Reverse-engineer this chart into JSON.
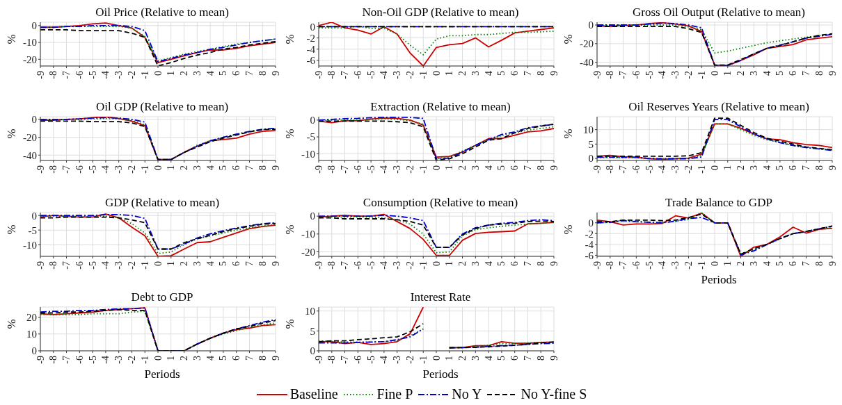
{
  "chart_data": [
    {
      "type": "line",
      "title": "Oil Price (Relative to mean)",
      "ylabel": "%",
      "x": [
        -9,
        -8,
        -7,
        -6,
        -5,
        -4,
        -3,
        -2,
        -1,
        0,
        1,
        2,
        3,
        4,
        5,
        6,
        7,
        8,
        9
      ],
      "xlim": [
        -9,
        9
      ],
      "xticks": [
        -9,
        -8,
        -7,
        -6,
        -5,
        -4,
        -3,
        -2,
        -1,
        0,
        1,
        2,
        3,
        4,
        5,
        6,
        7,
        8,
        9
      ],
      "ylim": [
        -24,
        2
      ],
      "yticks": [
        -20,
        -10,
        0
      ],
      "grid": true,
      "series": [
        {
          "color": "#cc0000",
          "line_style": "solid",
          "values": [
            -1,
            -1,
            -0.5,
            0,
            1,
            1.5,
            0,
            -1.5,
            -7,
            -22,
            -20,
            -18,
            -16,
            -14.5,
            -14.5,
            -13.5,
            -12,
            -11,
            -10
          ]
        },
        {
          "color": "#008000",
          "line_style": "dotted",
          "values": [
            -1,
            -1,
            -0.5,
            -0.5,
            -0.5,
            -0.5,
            -0.5,
            -1.5,
            -6.5,
            -21,
            -19,
            -17,
            -15.5,
            -14,
            -12.5,
            -11,
            -10,
            -9,
            -8
          ]
        },
        {
          "color": "#0000cc",
          "line_style": "dashdot",
          "values": [
            -1,
            -1,
            -0.5,
            -0.5,
            0,
            0,
            0,
            -0.5,
            -3,
            -21.5,
            -19.5,
            -17.5,
            -16,
            -14,
            -13,
            -11.5,
            -10,
            -9,
            -8
          ]
        },
        {
          "color": "#000000",
          "line_style": "dashed",
          "values": [
            -2.5,
            -2.5,
            -2.5,
            -3,
            -3,
            -3,
            -3,
            -4.5,
            -7,
            -24,
            -22,
            -19.5,
            -17.5,
            -16,
            -14,
            -13,
            -11.5,
            -10.5,
            -9.5
          ]
        }
      ]
    },
    {
      "type": "line",
      "title": "Non-Oil GDP (Relative to mean)",
      "ylabel": "%",
      "x": [
        -9,
        -8,
        -7,
        -6,
        -5,
        -4,
        -3,
        -2,
        -1,
        0,
        1,
        2,
        3,
        4,
        5,
        6,
        7,
        8,
        9
      ],
      "xlim": [
        -9,
        9
      ],
      "xticks": [
        -9,
        -8,
        -7,
        -6,
        -5,
        -4,
        -3,
        -2,
        -1,
        0,
        1,
        2,
        3,
        4,
        5,
        6,
        7,
        8,
        9
      ],
      "ylim": [
        -7,
        0.8
      ],
      "yticks": [
        -6,
        -4,
        -2,
        0
      ],
      "grid": true,
      "series": [
        {
          "color": "#cc0000",
          "line_style": "solid",
          "values": [
            0.2,
            0.8,
            -0.2,
            -0.6,
            -1.3,
            0,
            -1.3,
            -4.7,
            -7,
            -3.7,
            -3.2,
            -3,
            -2,
            -3.6,
            -2.4,
            -1.1,
            -0.8,
            -0.5,
            -0.2
          ]
        },
        {
          "color": "#008000",
          "line_style": "dotted",
          "values": [
            -0.2,
            -0.2,
            -0.2,
            0.1,
            -0.3,
            -0.3,
            -1.3,
            -3.3,
            -5,
            -2.2,
            -1.6,
            -1.6,
            -1.4,
            -1.4,
            -1.2,
            -1,
            -1,
            -0.9,
            -0.8
          ]
        },
        {
          "color": "#0000cc",
          "line_style": "dashdot",
          "values": [
            0,
            0,
            0,
            0,
            0,
            0,
            0,
            0,
            0,
            0,
            0,
            0,
            0,
            0,
            0,
            0,
            0,
            0,
            0
          ]
        },
        {
          "color": "#000000",
          "line_style": "dashed",
          "values": [
            0,
            0,
            0,
            0,
            0,
            0,
            0,
            0,
            0,
            0,
            0,
            0,
            0,
            0,
            0,
            0,
            0,
            0,
            0
          ]
        }
      ]
    },
    {
      "type": "line",
      "title": "Gross Oil Output (Relative to mean)",
      "ylabel": "%",
      "x": [
        -9,
        -8,
        -7,
        -6,
        -5,
        -4,
        -3,
        -2,
        -1,
        0,
        1,
        2,
        3,
        4,
        5,
        6,
        7,
        8,
        9
      ],
      "xlim": [
        -9,
        9
      ],
      "xticks": [
        -9,
        -8,
        -7,
        -6,
        -5,
        -4,
        -3,
        -2,
        -1,
        0,
        1,
        2,
        3,
        4,
        5,
        6,
        7,
        8,
        9
      ],
      "ylim": [
        -44,
        3
      ],
      "yticks": [
        -40,
        -20,
        0
      ],
      "grid": true,
      "series": [
        {
          "color": "#cc0000",
          "line_style": "solid",
          "values": [
            -1,
            -1.5,
            -0.5,
            0,
            1.5,
            2.5,
            1,
            -1,
            -7,
            -43,
            -43.5,
            -38,
            -32,
            -25,
            -23,
            -21,
            -16,
            -14,
            -12.5
          ]
        },
        {
          "color": "#008000",
          "line_style": "dotted",
          "values": [
            -0.5,
            -0.5,
            0,
            0,
            0,
            0,
            0,
            -2,
            -5,
            -30,
            -28,
            -25,
            -22,
            -19,
            -17,
            -15,
            -13,
            -11.5,
            -10
          ]
        },
        {
          "color": "#0000cc",
          "line_style": "dashdot",
          "values": [
            0,
            0,
            0,
            0,
            1,
            2,
            1.5,
            0,
            -3,
            -43,
            -43.5,
            -38,
            -31,
            -25,
            -21.5,
            -18,
            -14,
            -12,
            -10
          ]
        },
        {
          "color": "#000000",
          "line_style": "dashed",
          "values": [
            -1.5,
            -1.5,
            -1.5,
            -1.5,
            -1.5,
            -1.5,
            -1.5,
            -4,
            -8,
            -43,
            -43,
            -37,
            -31,
            -25,
            -22,
            -18,
            -14,
            -11,
            -9.5
          ]
        }
      ]
    },
    {
      "type": "line",
      "title": "Oil GDP (Relative to mean)",
      "ylabel": "%",
      "x": [
        -9,
        -8,
        -7,
        -6,
        -5,
        -4,
        -3,
        -2,
        -1,
        0,
        1,
        2,
        3,
        4,
        5,
        6,
        7,
        8,
        9
      ],
      "xlim": [
        -9,
        9
      ],
      "xticks": [
        -9,
        -8,
        -7,
        -6,
        -5,
        -4,
        -3,
        -2,
        -1,
        0,
        1,
        2,
        3,
        4,
        5,
        6,
        7,
        8,
        9
      ],
      "ylim": [
        -46,
        3
      ],
      "yticks": [
        -40,
        -20,
        0
      ],
      "grid": true,
      "series": [
        {
          "color": "#cc0000",
          "line_style": "solid",
          "values": [
            -1,
            -1,
            0,
            0.5,
            2,
            3,
            1,
            -2,
            -7,
            -45,
            -45,
            -37,
            -30,
            -24,
            -22.5,
            -21,
            -16.5,
            -13.5,
            -12.5
          ]
        },
        {
          "color": "#008000",
          "line_style": "dotted",
          "values": [
            -0.5,
            -0.5,
            0,
            0,
            0.5,
            1,
            0.5,
            -1,
            -6,
            -45,
            -45,
            -37,
            -29,
            -24,
            -20,
            -17,
            -14,
            -11.5,
            -10.5
          ]
        },
        {
          "color": "#0000cc",
          "line_style": "dashdot",
          "values": [
            0,
            0,
            0,
            0.5,
            1.5,
            2,
            1.5,
            0,
            -3,
            -45,
            -45,
            -37,
            -30,
            -24,
            -20,
            -16.5,
            -13.5,
            -11,
            -10
          ]
        },
        {
          "color": "#000000",
          "line_style": "dashed",
          "values": [
            -2,
            -2,
            -2,
            -2,
            -2.5,
            -2.5,
            -2.5,
            -4,
            -8,
            -45,
            -45,
            -37,
            -31,
            -25,
            -21,
            -17.5,
            -14,
            -11.5,
            -11
          ]
        }
      ]
    },
    {
      "type": "line",
      "title": "Extraction (Relative to mean)",
      "ylabel": "%",
      "x": [
        -9,
        -8,
        -7,
        -6,
        -5,
        -4,
        -3,
        -2,
        -1,
        0,
        1,
        2,
        3,
        4,
        5,
        6,
        7,
        8,
        9
      ],
      "xlim": [
        -9,
        9
      ],
      "xticks": [
        -9,
        -8,
        -7,
        -6,
        -5,
        -4,
        -3,
        -2,
        -1,
        0,
        1,
        2,
        3,
        4,
        5,
        6,
        7,
        8,
        9
      ],
      "ylim": [
        -12,
        1
      ],
      "yticks": [
        -10,
        -5,
        0
      ],
      "grid": true,
      "series": [
        {
          "color": "#cc0000",
          "line_style": "solid",
          "values": [
            -0.3,
            -0.8,
            -0.2,
            -0.2,
            0.3,
            0.6,
            0.5,
            0,
            -1.5,
            -11,
            -10.8,
            -9.5,
            -7.5,
            -5.5,
            -5.5,
            -4.5,
            -3.5,
            -3.2,
            -2.5
          ]
        },
        {
          "color": "#008000",
          "line_style": "dotted",
          "values": [
            0,
            0,
            0,
            0,
            0.2,
            0.4,
            0.2,
            -0.2,
            -1.2,
            -11.5,
            -11,
            -9.2,
            -7.5,
            -5.8,
            -4.6,
            -3.8,
            -3,
            -2.5,
            -2
          ]
        },
        {
          "color": "#0000cc",
          "line_style": "dashdot",
          "values": [
            0,
            0.2,
            0.4,
            0.5,
            0.7,
            0.8,
            0.8,
            0.8,
            0.5,
            -11.5,
            -11.3,
            -9.5,
            -7.5,
            -5.8,
            -4.3,
            -3.5,
            -2.3,
            -1.7,
            -1.3
          ]
        },
        {
          "color": "#000000",
          "line_style": "dashed",
          "values": [
            -0.3,
            -0.3,
            -0.3,
            -0.3,
            -0.3,
            -0.3,
            -0.5,
            -0.8,
            -2,
            -12,
            -11.5,
            -10,
            -8,
            -6,
            -5.5,
            -3.8,
            -2.5,
            -1.8,
            -1.2
          ]
        }
      ]
    },
    {
      "type": "line",
      "title": "Oil Reserves Years (Relative to mean)",
      "ylabel": "%",
      "x": [
        -9,
        -8,
        -7,
        -6,
        -5,
        -4,
        -3,
        -2,
        -1,
        0,
        1,
        2,
        3,
        4,
        5,
        6,
        7,
        8,
        9
      ],
      "xlim": [
        -9,
        9
      ],
      "xticks": [
        -9,
        -8,
        -7,
        -6,
        -5,
        -4,
        -3,
        -2,
        -1,
        0,
        1,
        2,
        3,
        4,
        5,
        6,
        7,
        8,
        9
      ],
      "ylim": [
        -0.7,
        14.5
      ],
      "yticks": [
        0,
        5,
        10
      ],
      "grid": true,
      "series": [
        {
          "color": "#cc0000",
          "line_style": "solid",
          "values": [
            0.8,
            1.1,
            0.6,
            0.4,
            -0.1,
            -0.3,
            -0.1,
            0.1,
            1.5,
            12,
            12,
            10.5,
            8.5,
            6.8,
            6.5,
            5.5,
            4.8,
            4.5,
            3.8
          ]
        },
        {
          "color": "#008000",
          "line_style": "dotted",
          "values": [
            0.3,
            0.3,
            0.3,
            0.3,
            0,
            -0.1,
            0,
            0,
            1,
            12,
            12,
            10,
            8,
            6.5,
            5.5,
            4.5,
            3.8,
            3.3,
            3
          ]
        },
        {
          "color": "#0000cc",
          "line_style": "dashdot",
          "values": [
            0.5,
            0.5,
            0.4,
            0.4,
            0,
            -0.1,
            -0.1,
            -0.1,
            0.5,
            13.5,
            13.5,
            11,
            8.5,
            6.8,
            5.5,
            4.5,
            3.8,
            3.3,
            2.8
          ]
        },
        {
          "color": "#000000",
          "line_style": "dashed",
          "values": [
            0.8,
            0.8,
            0.8,
            0.8,
            0.8,
            0.8,
            0.8,
            0.9,
            2,
            14,
            14,
            11.5,
            9,
            7,
            6,
            5,
            4,
            3.5,
            3
          ]
        }
      ]
    },
    {
      "type": "line",
      "title": "GDP (Relative to mean)",
      "ylabel": "%",
      "x": [
        -9,
        -8,
        -7,
        -6,
        -5,
        -4,
        -3,
        -2,
        -1,
        0,
        1,
        2,
        3,
        4,
        5,
        6,
        7,
        8,
        9
      ],
      "xlim": [
        -9,
        9
      ],
      "xticks": [
        -9,
        -8,
        -7,
        -6,
        -5,
        -4,
        -3,
        -2,
        -1,
        0,
        1,
        2,
        3,
        4,
        5,
        6,
        7,
        8,
        9
      ],
      "ylim": [
        -14,
        1
      ],
      "yticks": [
        -10,
        -5,
        0
      ],
      "grid": true,
      "series": [
        {
          "color": "#cc0000",
          "line_style": "solid",
          "values": [
            -0.5,
            0,
            -0.3,
            -0.5,
            -0.5,
            0.5,
            -0.8,
            -4,
            -7,
            -14,
            -13.8,
            -11.5,
            -9.3,
            -9,
            -7.5,
            -6,
            -4.5,
            -3.8,
            -3.3
          ]
        },
        {
          "color": "#008000",
          "line_style": "dotted",
          "values": [
            -0.3,
            -0.3,
            -0.3,
            -0.3,
            -0.3,
            -0.2,
            -0.8,
            -2.8,
            -6,
            -13,
            -12.5,
            -10,
            -8,
            -7,
            -6,
            -5,
            -4.2,
            -3.6,
            -3
          ]
        },
        {
          "color": "#0000cc",
          "line_style": "dashdot",
          "values": [
            0,
            0,
            0,
            0,
            0,
            0.3,
            0.3,
            0,
            -1,
            -11.5,
            -11.5,
            -9.8,
            -7.7,
            -6.3,
            -5.2,
            -4.3,
            -3.5,
            -2.8,
            -2.5
          ]
        },
        {
          "color": "#000000",
          "line_style": "dashed",
          "values": [
            -0.8,
            -0.8,
            -0.6,
            -0.6,
            -0.6,
            -0.6,
            -0.8,
            -1.5,
            -2.5,
            -11.5,
            -11.5,
            -9.3,
            -8,
            -6.8,
            -5.5,
            -4.5,
            -3.7,
            -3,
            -2.7
          ]
        }
      ]
    },
    {
      "type": "line",
      "title": "Consumption (Relative to mean)",
      "ylabel": "%",
      "x": [
        -9,
        -8,
        -7,
        -6,
        -5,
        -4,
        -3,
        -2,
        -1,
        0,
        1,
        2,
        3,
        4,
        5,
        6,
        7,
        8,
        9
      ],
      "xlim": [
        -9,
        9
      ],
      "xticks": [
        -9,
        -8,
        -7,
        -6,
        -5,
        -4,
        -3,
        -2,
        -1,
        0,
        1,
        2,
        3,
        4,
        5,
        6,
        7,
        8,
        9
      ],
      "ylim": [
        -22.5,
        2
      ],
      "yticks": [
        -20,
        -10,
        0
      ],
      "grid": true,
      "series": [
        {
          "color": "#cc0000",
          "line_style": "solid",
          "values": [
            -0.5,
            0,
            0.5,
            0,
            0,
            1,
            -3,
            -7,
            -13,
            -22,
            -22,
            -13.5,
            -9.7,
            -9,
            -8.7,
            -8.3,
            -4.3,
            -4,
            -3.5
          ]
        },
        {
          "color": "#008000",
          "line_style": "dotted",
          "values": [
            -0.5,
            -0.5,
            -0.5,
            -0.5,
            -0.5,
            -1,
            -2,
            -4.5,
            -10,
            -20.5,
            -20,
            -11,
            -7.5,
            -6.5,
            -5.7,
            -5,
            -4.5,
            -4,
            -3.5
          ]
        },
        {
          "color": "#0000cc",
          "line_style": "dashdot",
          "values": [
            0,
            0,
            0,
            0,
            0,
            0.5,
            0,
            -1,
            -2.5,
            -17.5,
            -17.5,
            -10,
            -6.5,
            -5,
            -4,
            -3.5,
            -2.5,
            -2,
            -2.5
          ]
        },
        {
          "color": "#000000",
          "line_style": "dashed",
          "values": [
            -1,
            -1,
            -1.5,
            -1.5,
            -1.5,
            -1.5,
            -2,
            -3,
            -5,
            -17.5,
            -17.5,
            -10.5,
            -7,
            -5,
            -4.5,
            -4,
            -3,
            -2.8,
            -3
          ]
        }
      ]
    },
    {
      "type": "line",
      "title": "Trade Balance to GDP",
      "xlabel": "Periods",
      "ylabel": "%",
      "x": [
        -9,
        -8,
        -7,
        -6,
        -5,
        -4,
        -3,
        -2,
        -1,
        0,
        1,
        2,
        3,
        4,
        5,
        6,
        7,
        8,
        9
      ],
      "xlim": [
        -9,
        9
      ],
      "xticks": [
        -9,
        -8,
        -7,
        -6,
        -5,
        -4,
        -3,
        -2,
        -1,
        0,
        1,
        2,
        3,
        4,
        5,
        6,
        7,
        8,
        9
      ],
      "ylim": [
        -6.2,
        1.9
      ],
      "yticks": [
        -6,
        -4,
        -2,
        0
      ],
      "grid": true,
      "series": [
        {
          "color": "#cc0000",
          "line_style": "solid",
          "values": [
            0.5,
            0.2,
            -0.4,
            -0.2,
            -0.2,
            -0.1,
            1.3,
            0.9,
            1.8,
            0,
            0,
            -6.2,
            -4.5,
            -4,
            -2.6,
            -0.8,
            -1.9,
            -1.2,
            -1
          ]
        },
        {
          "color": "#008000",
          "line_style": "dotted",
          "values": [
            0,
            0.1,
            0.5,
            0.3,
            0.1,
            0.1,
            0.3,
            0.6,
            1.9,
            0,
            0,
            -5.7,
            -5,
            -4,
            -3,
            -2,
            -1.6,
            -1.1,
            -0.9
          ]
        },
        {
          "color": "#0000cc",
          "line_style": "dashdot",
          "values": [
            0,
            0.1,
            0.4,
            0.2,
            0.1,
            0,
            0.3,
            0.8,
            1,
            0,
            0,
            -5.9,
            -5.2,
            -4,
            -2.9,
            -2,
            -1.6,
            -1.1,
            -0.6
          ]
        },
        {
          "color": "#000000",
          "line_style": "dashed",
          "values": [
            0.2,
            0.2,
            0.5,
            0.5,
            0.5,
            0.4,
            0.5,
            1,
            1.6,
            0,
            0,
            -5.8,
            -4.8,
            -4,
            -2.9,
            -2,
            -1.6,
            -1.1,
            -0.6
          ]
        }
      ]
    },
    {
      "type": "line",
      "title": "Debt to GDP",
      "xlabel": "Periods",
      "ylabel": "%",
      "x": [
        -9,
        -8,
        -7,
        -6,
        -5,
        -4,
        -3,
        -2,
        -1,
        0,
        1,
        2,
        3,
        4,
        5,
        6,
        7,
        8,
        9
      ],
      "xlim": [
        -9,
        9
      ],
      "xticks": [
        -9,
        -8,
        -7,
        -6,
        -5,
        -4,
        -3,
        -2,
        -1,
        0,
        1,
        2,
        3,
        4,
        5,
        6,
        7,
        8,
        9
      ],
      "ylim": [
        0,
        26
      ],
      "yticks": [
        0,
        10,
        20
      ],
      "grid": true,
      "series": [
        {
          "color": "#cc0000",
          "line_style": "solid",
          "values": [
            22,
            21.5,
            22,
            22.5,
            23,
            24,
            24.5,
            25,
            25.5,
            0,
            0,
            0,
            4,
            7.5,
            10.5,
            12.5,
            13.5,
            15,
            15.5
          ]
        },
        {
          "color": "#008000",
          "line_style": "dotted",
          "values": [
            21.5,
            21.5,
            21.5,
            21.5,
            22,
            22,
            22,
            23,
            23.5,
            0,
            0,
            0,
            4,
            7.5,
            10,
            12,
            14,
            15.5,
            16.5
          ]
        },
        {
          "color": "#0000cc",
          "line_style": "dashdot",
          "values": [
            23,
            23.5,
            23.5,
            24,
            24,
            24.5,
            25,
            25,
            25.5,
            0,
            0,
            0,
            4,
            7.5,
            10.5,
            13,
            15,
            17,
            18.5
          ]
        },
        {
          "color": "#000000",
          "line_style": "dashed",
          "values": [
            22.5,
            22.5,
            23,
            23,
            23.5,
            24,
            24.5,
            24,
            24,
            0,
            0,
            0,
            4,
            7.5,
            10.5,
            13,
            14.5,
            16.5,
            18
          ]
        }
      ]
    },
    {
      "type": "line",
      "title": "Interest Rate",
      "xlabel": "Periods",
      "ylabel": "%",
      "x": [
        -9,
        -8,
        -7,
        -6,
        -5,
        -4,
        -3,
        -2,
        -1,
        0,
        1,
        2,
        3,
        4,
        5,
        6,
        7,
        8,
        9
      ],
      "xlim": [
        -9,
        9
      ],
      "xticks": [
        -9,
        -8,
        -7,
        -6,
        -5,
        -4,
        -3,
        -2,
        -1,
        0,
        1,
        2,
        3,
        4,
        5,
        6,
        7,
        8,
        9
      ],
      "ylim": [
        0,
        11
      ],
      "yticks": [
        0,
        5,
        10
      ],
      "grid": true,
      "legend": "bottom",
      "series": [
        {
          "name": "Baseline",
          "color": "#cc0000",
          "line_style": "solid",
          "values": [
            2.3,
            2.3,
            1.8,
            2.1,
            1.6,
            1.8,
            2.3,
            4.3,
            11,
            null,
            0.8,
            0.8,
            1.3,
            1.3,
            2.3,
            1.9,
            1.9,
            2.1,
            2.2
          ]
        },
        {
          "name": "Fine P",
          "color": "#008000",
          "line_style": "dotted",
          "values": [
            2.4,
            2.4,
            2.2,
            2.2,
            2.2,
            2.3,
            2.6,
            3.8,
            5.5,
            null,
            0.8,
            0.8,
            1.2,
            1.4,
            1.8,
            1.8,
            2,
            2.1,
            2.2
          ]
        },
        {
          "name": "No Y",
          "color": "#0000cc",
          "line_style": "dashdot",
          "values": [
            2,
            2,
            2,
            2.1,
            2.2,
            2.3,
            2.8,
            3.5,
            5.5,
            null,
            0.7,
            0.8,
            0.9,
            1.1,
            1.3,
            1.4,
            1.6,
            1.8,
            1.9
          ]
        },
        {
          "name": "No Y-fine S",
          "color": "#000000",
          "line_style": "dashed",
          "values": [
            2.3,
            2.5,
            2.5,
            2.8,
            3,
            3.3,
            3.5,
            4.8,
            6.8,
            null,
            0.8,
            0.8,
            0.9,
            1,
            1.2,
            1.4,
            1.7,
            2,
            2.2
          ]
        }
      ]
    }
  ]
}
